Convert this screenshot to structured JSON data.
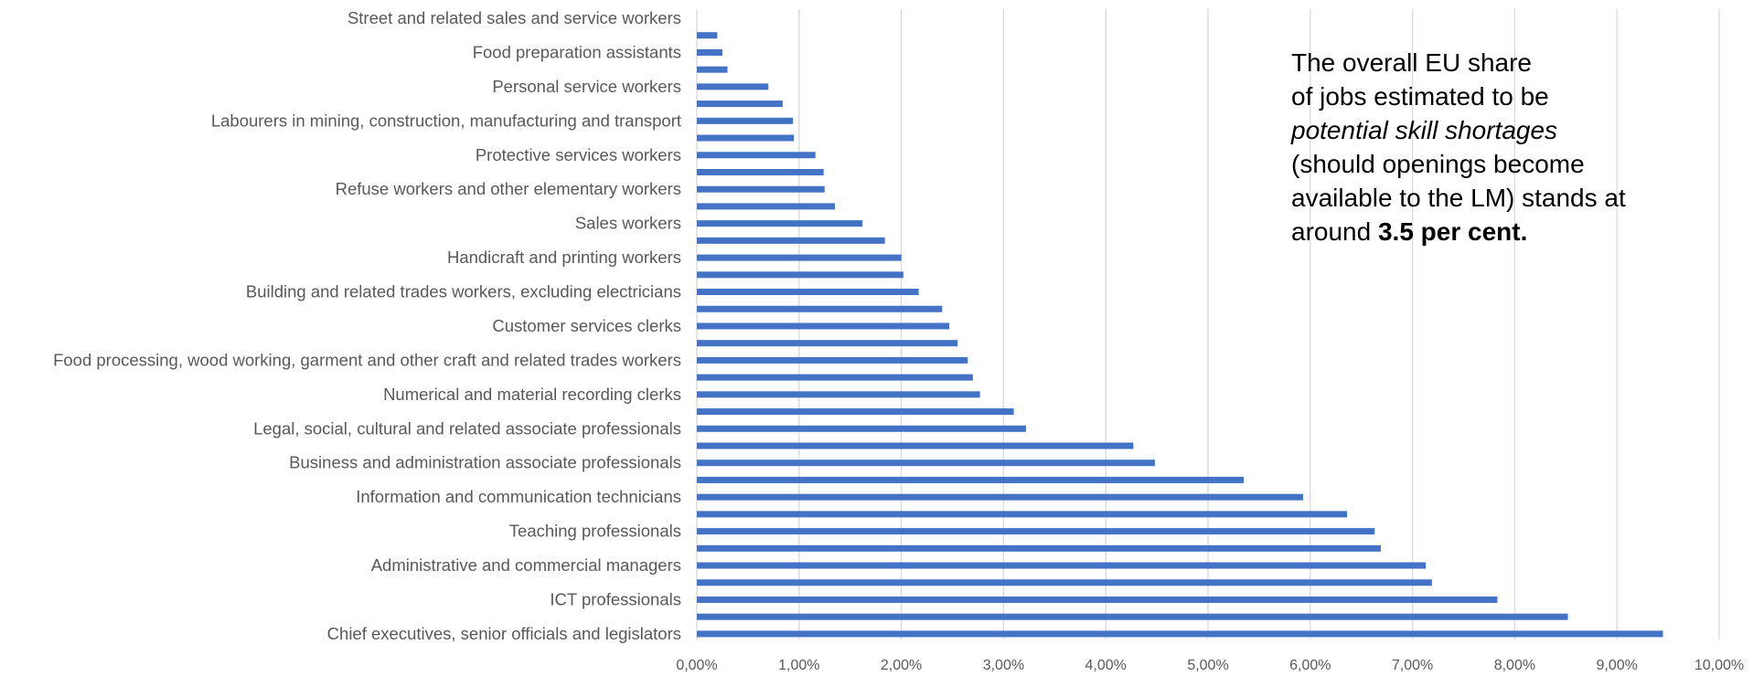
{
  "chart_data": {
    "type": "bar",
    "orientation": "horizontal",
    "bar_color": "#4472C4",
    "grid": true,
    "xlim": [
      0,
      10
    ],
    "x_tick_labels": [
      "0,00%",
      "1,00%",
      "2,00%",
      "3,00%",
      "4,00%",
      "5,00%",
      "6,00%",
      "7,00%",
      "8,00%",
      "9,00%",
      "10,00%"
    ],
    "categories": [
      "Street and related sales and service workers",
      "",
      "Food preparation assistants",
      "",
      "Personal service workers",
      "",
      "Labourers in mining, construction, manufacturing and transport",
      "",
      "Protective services workers",
      "",
      "Refuse workers and other elementary workers",
      "",
      "Sales workers",
      "",
      "Handicraft and printing workers",
      "",
      "Building and related trades workers, excluding electricians",
      "",
      "Customer services clerks",
      "",
      "Food processing, wood working, garment and other craft and related trades workers",
      "",
      "Numerical and material recording clerks",
      "",
      "Legal, social, cultural and related associate professionals",
      "",
      "Business and administration associate professionals",
      "",
      "Information and communication technicians",
      "",
      "Teaching professionals",
      "",
      "Administrative and commercial managers ",
      "",
      "ICT professionals",
      "",
      "Chief executives, senior officials and legislators"
    ],
    "values": [
      0.0,
      0.2,
      0.25,
      0.3,
      0.7,
      0.84,
      0.94,
      0.95,
      1.16,
      1.24,
      1.25,
      1.35,
      1.62,
      1.84,
      2.0,
      2.02,
      2.17,
      2.4,
      2.47,
      2.55,
      2.65,
      2.7,
      2.77,
      3.1,
      3.22,
      4.27,
      4.48,
      5.35,
      5.93,
      6.36,
      6.63,
      6.69,
      7.13,
      7.19,
      7.83,
      8.52,
      9.45
    ]
  },
  "annotation": {
    "line1": "The overall EU share",
    "line2": "of jobs estimated to be",
    "line3_italic": "potential skill shortages",
    "line4": "(should openings become",
    "line5": "available to the LM) stands at",
    "line6_prefix": "around ",
    "line6_bold": "3.5 per cent."
  }
}
